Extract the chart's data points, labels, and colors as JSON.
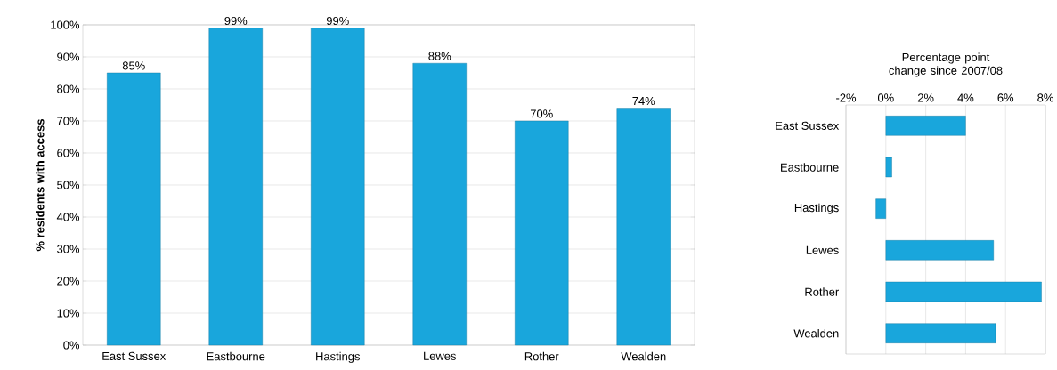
{
  "chart_data": [
    {
      "type": "bar",
      "ylabel": "% residents with access",
      "categories": [
        "East Sussex",
        "Eastbourne",
        "Hastings",
        "Lewes",
        "Rother",
        "Wealden"
      ],
      "values": [
        85,
        99,
        99,
        88,
        70,
        74
      ],
      "value_labels": [
        "85%",
        "99%",
        "99%",
        "88%",
        "70%",
        "74%"
      ],
      "color": "#19a6dc",
      "ylim": [
        0,
        100
      ],
      "yticks": [
        {
          "value": 0,
          "label": "0%"
        },
        {
          "value": 10,
          "label": "10%"
        },
        {
          "value": 20,
          "label": "20%"
        },
        {
          "value": 30,
          "label": "30%"
        },
        {
          "value": 40,
          "label": "40%"
        },
        {
          "value": 50,
          "label": "50%"
        },
        {
          "value": 60,
          "label": "60%"
        },
        {
          "value": 70,
          "label": "70%"
        },
        {
          "value": 80,
          "label": "80%"
        },
        {
          "value": 90,
          "label": "90%"
        },
        {
          "value": 100,
          "label": "100%"
        }
      ],
      "grid": "y"
    },
    {
      "type": "bar",
      "orientation": "horizontal",
      "title": "Percentage point change since 2007/08",
      "categories": [
        "East Sussex",
        "Eastbourne",
        "Hastings",
        "Lewes",
        "Rother",
        "Wealden"
      ],
      "values": [
        4.0,
        0.3,
        -0.5,
        5.4,
        7.8,
        5.5
      ],
      "color": "#19a6dc",
      "xlim": [
        -2,
        8
      ],
      "xticks": [
        {
          "value": -2,
          "label": "-2%"
        },
        {
          "value": 0,
          "label": "0%"
        },
        {
          "value": 2,
          "label": "2%"
        },
        {
          "value": 4,
          "label": "4%"
        },
        {
          "value": 6,
          "label": "6%"
        },
        {
          "value": 8,
          "label": "8%"
        }
      ],
      "grid": "x"
    }
  ]
}
